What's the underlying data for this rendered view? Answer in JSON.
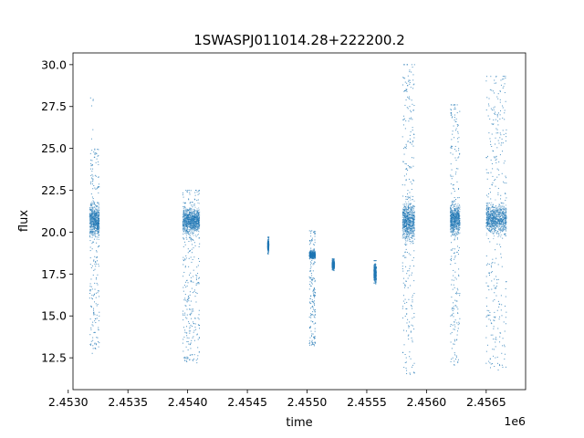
{
  "chart_data": {
    "type": "scatter",
    "title": "1SWASPJ011014.28+222200.2",
    "xlabel": "time",
    "ylabel": "flux",
    "x_offset_label": "1e6",
    "x_scale": 1000000,
    "xlim": [
      2.45304,
      2.45683
    ],
    "ylim": [
      10.6,
      30.7
    ],
    "x_ticks": [
      2.453,
      2.4535,
      2.454,
      2.4545,
      2.455,
      2.4555,
      2.456,
      2.4565
    ],
    "x_tick_labels": [
      "2.4530",
      "2.4535",
      "2.4540",
      "2.4545",
      "2.4550",
      "2.4555",
      "2.4560",
      "2.4565"
    ],
    "y_ticks": [
      12.5,
      15.0,
      17.5,
      20.0,
      22.5,
      25.0,
      27.5,
      30.0
    ],
    "y_tick_labels": [
      "12.5",
      "15.0",
      "17.5",
      "20.0",
      "22.5",
      "25.0",
      "27.5",
      "30.0"
    ],
    "grid": false,
    "legend": "none",
    "marker_color": "#1f77b4",
    "clusters": [
      {
        "x_range": [
          2.45318,
          2.45326
        ],
        "core_y": [
          19.3,
          22.1
        ],
        "spread_y": [
          12.7,
          25.0
        ],
        "max_y": 28.1
      },
      {
        "x_range": [
          2.45396,
          2.4541
        ],
        "core_y": [
          19.6,
          21.8
        ],
        "spread_y": [
          12.2,
          22.5
        ],
        "max_y": 22.5
      },
      {
        "x_range": [
          2.45467,
          2.45468
        ],
        "core_y": [
          18.7,
          19.7
        ],
        "spread_y": [
          18.7,
          19.7
        ],
        "max_y": 19.7
      },
      {
        "x_range": [
          2.45502,
          2.45507
        ],
        "core_y": [
          18.3,
          19.0
        ],
        "spread_y": [
          13.2,
          20.0
        ],
        "max_y": 20.1
      },
      {
        "x_range": [
          2.45521,
          2.45523
        ],
        "core_y": [
          17.7,
          18.4
        ],
        "spread_y": [
          17.7,
          18.4
        ],
        "max_y": 18.4
      },
      {
        "x_range": [
          2.45556,
          2.45558
        ],
        "core_y": [
          16.8,
          18.3
        ],
        "spread_y": [
          16.8,
          18.3
        ],
        "max_y": 18.3
      },
      {
        "x_range": [
          2.4558,
          2.4559
        ],
        "core_y": [
          19.0,
          22.3
        ],
        "spread_y": [
          11.5,
          30.0
        ],
        "max_y": 30.0
      },
      {
        "x_range": [
          2.4562,
          2.45628
        ],
        "core_y": [
          19.5,
          22.0
        ],
        "spread_y": [
          12.0,
          27.6
        ],
        "max_y": 27.6
      },
      {
        "x_range": [
          2.4565,
          2.45667
        ],
        "core_y": [
          19.5,
          22.1
        ],
        "spread_y": [
          11.7,
          29.3
        ],
        "max_y": 29.3
      }
    ]
  }
}
